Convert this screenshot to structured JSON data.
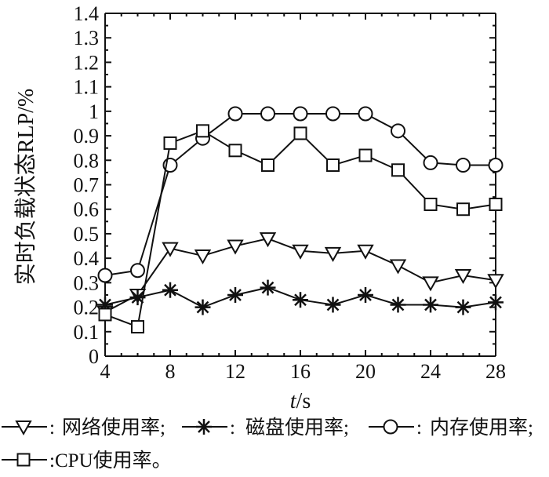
{
  "chart_data": {
    "type": "line",
    "xlabel_italic": "t",
    "xlabel_unit": "/s",
    "ylabel": "实时负载状态RLP/%",
    "xlim": [
      4,
      28
    ],
    "ylim": [
      0,
      1.4
    ],
    "x_ticks": [
      4,
      8,
      12,
      16,
      20,
      24,
      28
    ],
    "y_ticks": [
      0,
      0.1,
      0.2,
      0.3,
      0.4,
      0.5,
      0.6,
      0.7,
      0.8,
      0.9,
      1.0,
      1.1,
      1.2,
      1.3,
      1.4
    ],
    "grid": false,
    "legend_position": "bottom",
    "x": [
      4,
      6,
      8,
      10,
      12,
      14,
      16,
      18,
      20,
      22,
      24,
      26,
      28
    ],
    "series": [
      {
        "name": "网络使用率;",
        "marker": "triangle-down",
        "values": [
          0.18,
          0.25,
          0.44,
          0.41,
          0.45,
          0.48,
          0.43,
          0.42,
          0.43,
          0.37,
          0.3,
          0.33,
          0.31
        ]
      },
      {
        "name": "磁盘使用率;",
        "marker": "asterisk",
        "values": [
          0.21,
          0.24,
          0.27,
          0.2,
          0.25,
          0.28,
          0.23,
          0.21,
          0.25,
          0.21,
          0.21,
          0.2,
          0.22
        ]
      },
      {
        "name": "内存使用率;",
        "marker": "circle",
        "values": [
          0.33,
          0.35,
          0.78,
          0.89,
          0.99,
          0.99,
          0.99,
          0.99,
          0.99,
          0.92,
          0.79,
          0.78,
          0.78
        ]
      },
      {
        "name": "CPU使用率。",
        "marker": "square",
        "values": [
          0.17,
          0.12,
          0.87,
          0.92,
          0.84,
          0.78,
          0.91,
          0.78,
          0.82,
          0.76,
          0.62,
          0.6,
          0.62
        ]
      }
    ],
    "legend_separator": ":"
  }
}
